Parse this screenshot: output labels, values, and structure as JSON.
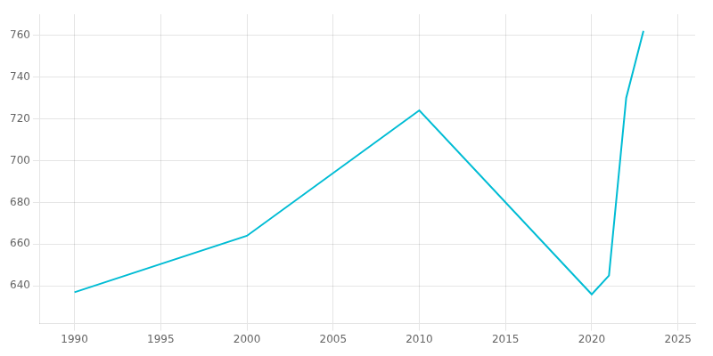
{
  "chart_data": {
    "type": "line",
    "x": [
      1990,
      2000,
      2010,
      2020,
      2021,
      2022,
      2023
    ],
    "values": [
      637,
      664,
      724,
      636,
      645,
      730,
      762
    ],
    "color": "#00BCD4",
    "xlim": [
      1988,
      2026
    ],
    "ylim": [
      622,
      770
    ],
    "xticks": [
      1990,
      1995,
      2000,
      2005,
      2010,
      2015,
      2020,
      2025
    ],
    "yticks": [
      640,
      660,
      680,
      700,
      720,
      740,
      760
    ],
    "grid": true
  }
}
